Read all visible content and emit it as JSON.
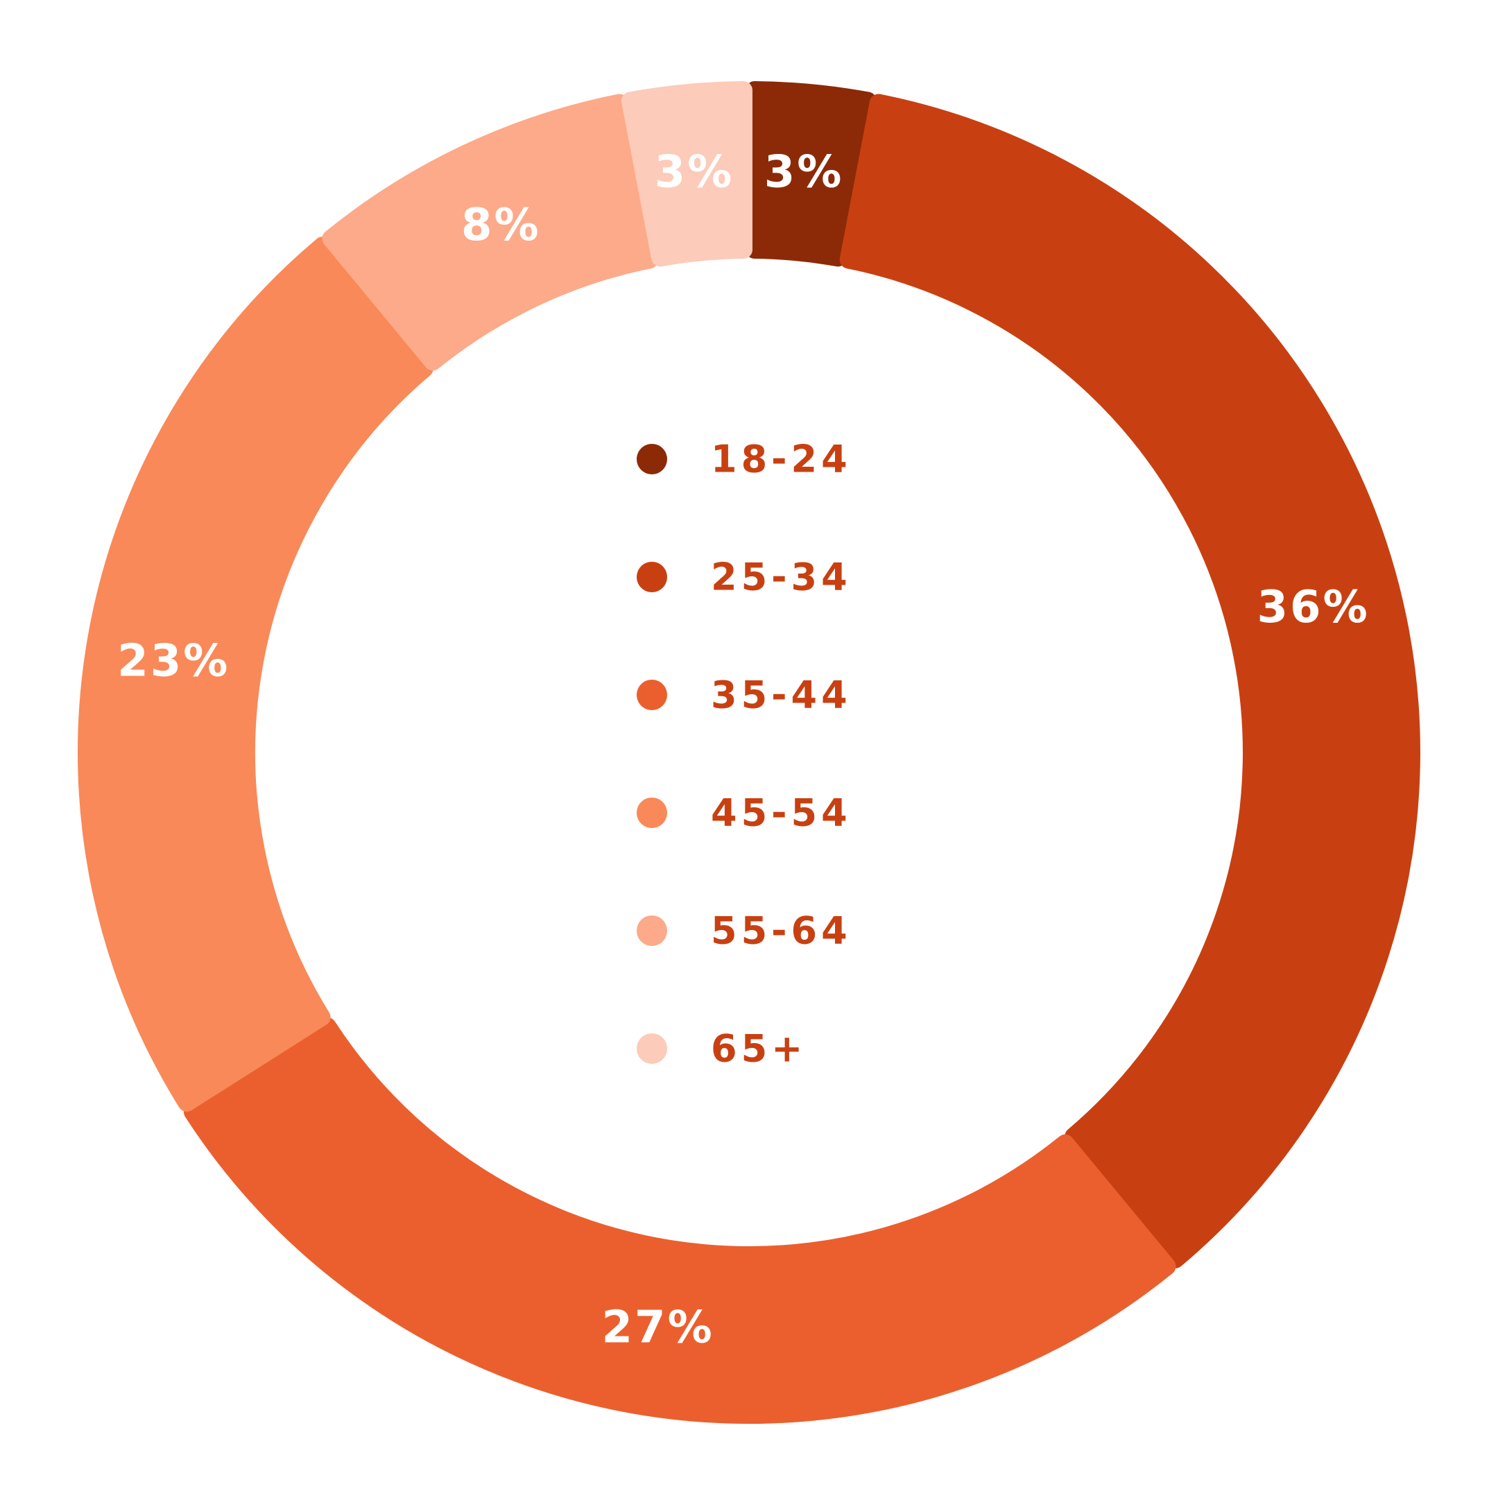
{
  "chart_data": {
    "type": "pie",
    "donut": true,
    "categories": [
      "18-24",
      "25-34",
      "35-44",
      "45-54",
      "55-64",
      "65+"
    ],
    "values": [
      3,
      36,
      27,
      23,
      8,
      3
    ],
    "data_labels": [
      "3%",
      "36%",
      "27%",
      "23%",
      "8%",
      "3%"
    ],
    "colors": [
      "#8c2a08",
      "#c84011",
      "#eb5f2e",
      "#f98958",
      "#fcaa89",
      "#fccbb9"
    ],
    "legend_placement": "center",
    "legend_text_color": "#c84011",
    "start_angle_deg": 0,
    "direction": "clockwise"
  }
}
